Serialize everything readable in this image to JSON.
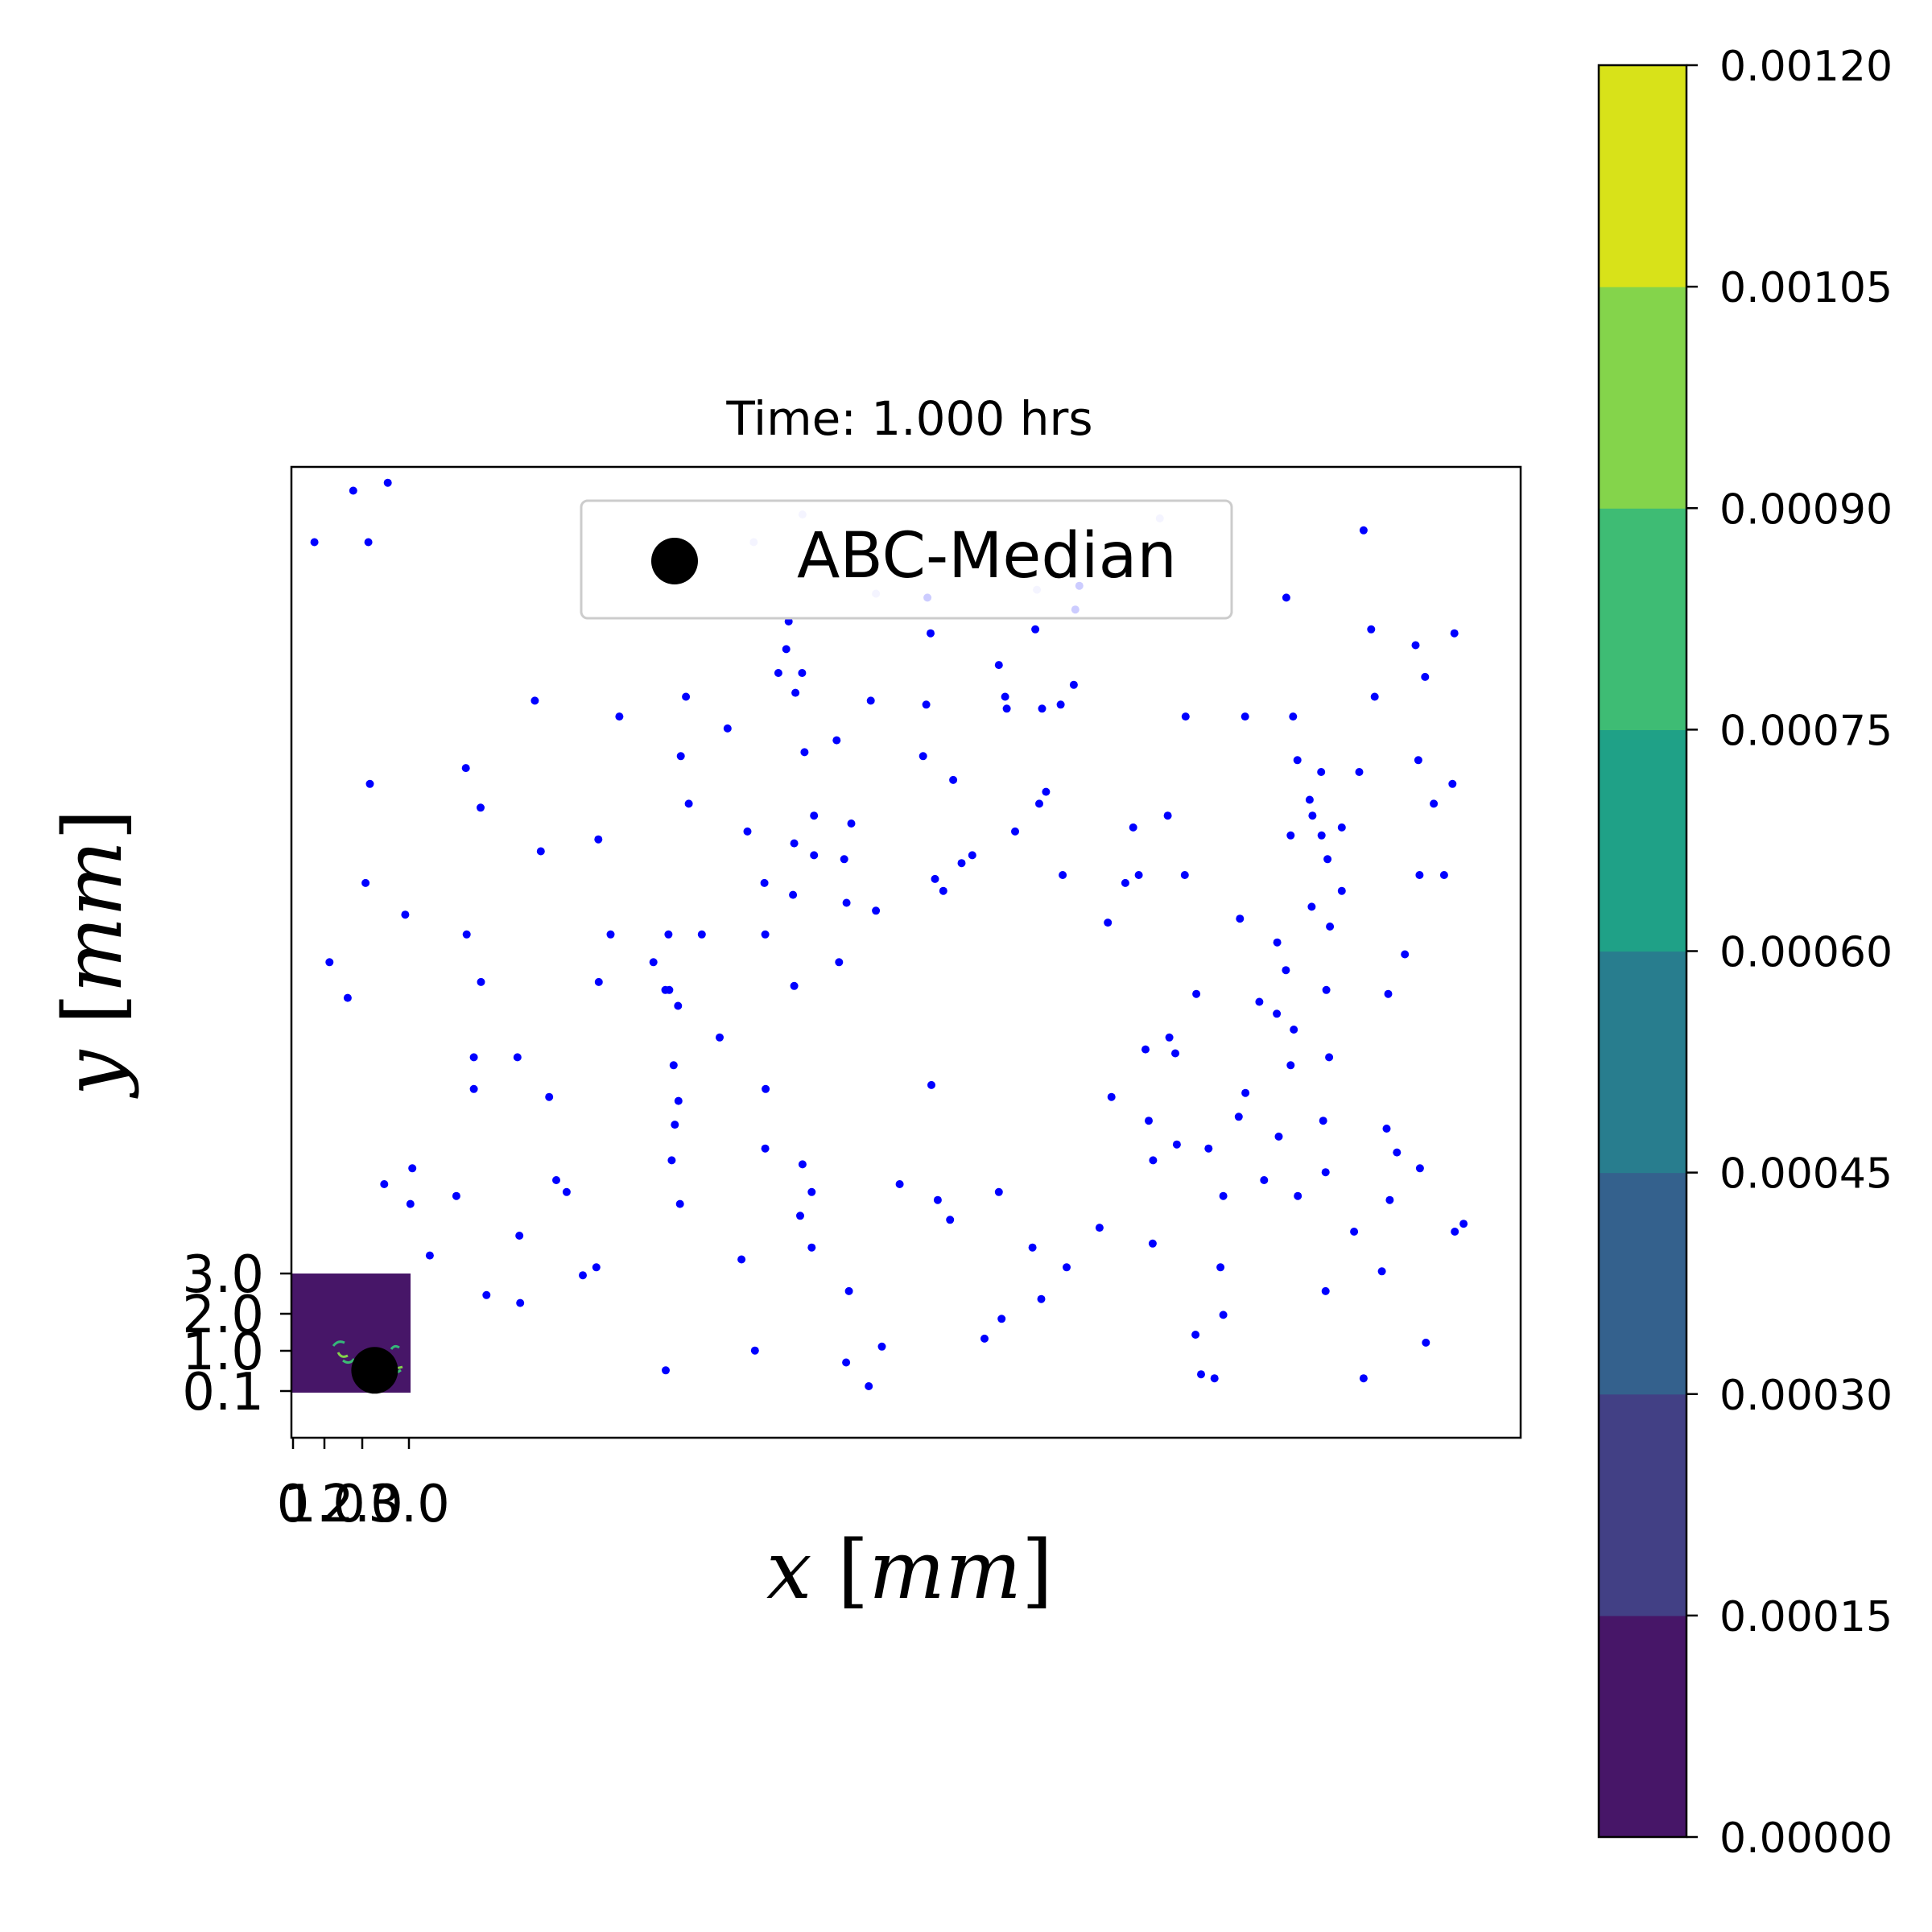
{
  "chart_data": {
    "type": "scatter",
    "title": "Time: 1.000 hrs",
    "xlabel_var": "x",
    "xlabel_unit": "mm",
    "ylabel_var": "y",
    "ylabel_unit": "mm",
    "x_ticks": [
      "0",
      "1.0",
      "2.0",
      "3.0"
    ],
    "y_ticks": [
      "0.1",
      "1.0",
      "2.0",
      "3.0"
    ],
    "xlim": [
      0,
      31
    ],
    "ylim": [
      -1,
      23.5
    ],
    "legend": {
      "label": "ABC-Median",
      "location": "top-center"
    },
    "median_point": {
      "x": 2.1,
      "y": 0.7
    },
    "heatmap": {
      "extent": {
        "x": [
          0,
          3
        ],
        "y": [
          0,
          3
        ]
      },
      "background_color": "#471668"
    },
    "colorbar": {
      "ticks": [
        "0.00000",
        "0.00015",
        "0.00030",
        "0.00045",
        "0.00060",
        "0.00075",
        "0.00090",
        "0.00105",
        "0.00120"
      ],
      "colors": [
        "#471668",
        "#424085",
        "#34618d",
        "#287d8e",
        "#1fa187",
        "#3ebc74",
        "#84d44b",
        "#d8e219"
      ]
    },
    "series": [
      {
        "name": "particles",
        "color": "#0000ff",
        "points": [
          [
            0.58,
            21.6
          ],
          [
            1.56,
            22.9
          ],
          [
            1.94,
            21.6
          ],
          [
            2.43,
            23.1
          ],
          [
            1.98,
            15.5
          ],
          [
            1.87,
            13.0
          ],
          [
            0.96,
            11.0
          ],
          [
            1.42,
            10.1
          ],
          [
            2.87,
            12.2
          ],
          [
            2.34,
            5.4
          ],
          [
            3.05,
            5.8
          ],
          [
            3.0,
            4.9
          ],
          [
            3.49,
            3.6
          ],
          [
            4.16,
            5.1
          ],
          [
            4.4,
            15.9
          ],
          [
            4.77,
            14.9
          ],
          [
            4.42,
            11.7
          ],
          [
            4.78,
            10.5
          ],
          [
            4.6,
            7.8
          ],
          [
            4.6,
            8.6
          ],
          [
            5.7,
            8.6
          ],
          [
            5.75,
            4.1
          ],
          [
            4.92,
            2.6
          ],
          [
            5.77,
            2.4
          ],
          [
            6.29,
            13.8
          ],
          [
            6.14,
            17.6
          ],
          [
            6.5,
            7.6
          ],
          [
            6.68,
            5.5
          ],
          [
            6.94,
            5.2
          ],
          [
            7.35,
            3.1
          ],
          [
            7.69,
            3.3
          ],
          [
            7.75,
            10.5
          ],
          [
            7.74,
            14.1
          ],
          [
            8.05,
            11.7
          ],
          [
            8.27,
            17.2
          ],
          [
            9.13,
            11.0
          ],
          [
            9.43,
            10.3
          ],
          [
            9.53,
            10.3
          ],
          [
            9.51,
            11.7
          ],
          [
            9.75,
            9.9
          ],
          [
            9.64,
            8.4
          ],
          [
            9.76,
            7.5
          ],
          [
            9.67,
            6.9
          ],
          [
            9.59,
            6.0
          ],
          [
            9.44,
            0.7
          ],
          [
            9.8,
            4.9
          ],
          [
            9.82,
            16.2
          ],
          [
            9.95,
            17.7
          ],
          [
            10.02,
            15.0
          ],
          [
            10.35,
            11.7
          ],
          [
            10.8,
            9.1
          ],
          [
            11.0,
            16.9
          ],
          [
            11.5,
            14.3
          ],
          [
            11.35,
            3.5
          ],
          [
            11.69,
            1.2
          ],
          [
            11.93,
            13.0
          ],
          [
            11.95,
            11.7
          ],
          [
            11.96,
            7.8
          ],
          [
            11.95,
            6.3
          ],
          [
            12.28,
            18.3
          ],
          [
            12.54,
            19.6
          ],
          [
            12.48,
            18.9
          ],
          [
            12.65,
            12.7
          ],
          [
            12.68,
            10.4
          ],
          [
            12.68,
            14.0
          ],
          [
            12.71,
            17.8
          ],
          [
            12.88,
            18.3
          ],
          [
            12.94,
            16.3
          ],
          [
            12.83,
            4.6
          ],
          [
            12.89,
            5.9
          ],
          [
            13.12,
            5.2
          ],
          [
            13.12,
            3.8
          ],
          [
            13.18,
            13.7
          ],
          [
            13.18,
            14.7
          ],
          [
            13.75,
            16.6
          ],
          [
            13.94,
            13.6
          ],
          [
            14.0,
            12.5
          ],
          [
            13.81,
            11.0
          ],
          [
            14.12,
            14.5
          ],
          [
            14.06,
            2.7
          ],
          [
            13.99,
            0.9
          ],
          [
            14.56,
            0.3
          ],
          [
            14.61,
            17.6
          ],
          [
            14.74,
            12.3
          ],
          [
            14.89,
            1.3
          ],
          [
            15.34,
            5.4
          ],
          [
            16.01,
            17.5
          ],
          [
            15.93,
            16.2
          ],
          [
            16.12,
            19.3
          ],
          [
            16.04,
            20.2
          ],
          [
            16.14,
            7.9
          ],
          [
            16.3,
            5.0
          ],
          [
            16.44,
            12.8
          ],
          [
            16.23,
            13.1
          ],
          [
            16.69,
            15.6
          ],
          [
            16.9,
            13.5
          ],
          [
            16.61,
            4.5
          ],
          [
            17.17,
            13.7
          ],
          [
            17.48,
            1.5
          ],
          [
            17.84,
            5.2
          ],
          [
            17.91,
            2.0
          ],
          [
            17.84,
            18.5
          ],
          [
            18.04,
            17.4
          ],
          [
            18.0,
            17.7
          ],
          [
            18.25,
            14.3
          ],
          [
            18.69,
            3.8
          ],
          [
            18.76,
            19.4
          ],
          [
            18.86,
            15.0
          ],
          [
            18.93,
            17.4
          ],
          [
            18.91,
            2.5
          ],
          [
            19.03,
            15.3
          ],
          [
            19.45,
            13.2
          ],
          [
            19.55,
            3.3
          ],
          [
            19.4,
            17.5
          ],
          [
            19.73,
            18.0
          ],
          [
            19.77,
            19.9
          ],
          [
            19.87,
            20.5
          ],
          [
            20.38,
            4.3
          ],
          [
            20.68,
            7.6
          ],
          [
            20.59,
            12.0
          ],
          [
            21.03,
            13.0
          ],
          [
            21.23,
            14.4
          ],
          [
            21.37,
            13.2
          ],
          [
            21.54,
            8.8
          ],
          [
            21.62,
            7.0
          ],
          [
            21.72,
            3.9
          ],
          [
            21.73,
            6.0
          ],
          [
            22.14,
            9.1
          ],
          [
            22.1,
            14.7
          ],
          [
            22.33,
            6.4
          ],
          [
            22.29,
            8.7
          ],
          [
            22.53,
            13.2
          ],
          [
            22.55,
            17.2
          ],
          [
            22.82,
            10.2
          ],
          [
            22.94,
            0.6
          ],
          [
            23.13,
            6.3
          ],
          [
            22.8,
            1.6
          ],
          [
            23.43,
            3.3
          ],
          [
            23.5,
            5.1
          ],
          [
            23.28,
            0.5
          ],
          [
            23.5,
            2.1
          ],
          [
            23.89,
            7.1
          ],
          [
            23.92,
            12.1
          ],
          [
            24.06,
            7.7
          ],
          [
            24.05,
            17.2
          ],
          [
            24.41,
            10.0
          ],
          [
            24.53,
            5.5
          ],
          [
            24.86,
            11.5
          ],
          [
            24.85,
            9.7
          ],
          [
            24.9,
            6.6
          ],
          [
            25.09,
            20.2
          ],
          [
            25.08,
            10.8
          ],
          [
            25.2,
            8.4
          ],
          [
            25.28,
            9.3
          ],
          [
            25.2,
            14.2
          ],
          [
            25.26,
            17.2
          ],
          [
            25.37,
            16.1
          ],
          [
            25.38,
            5.1
          ],
          [
            25.68,
            15.1
          ],
          [
            25.75,
            14.7
          ],
          [
            25.73,
            12.4
          ],
          [
            25.97,
            15.8
          ],
          [
            25.98,
            14.2
          ],
          [
            26.02,
            7.0
          ],
          [
            26.19,
            11.9
          ],
          [
            26.13,
            13.6
          ],
          [
            26.17,
            8.6
          ],
          [
            26.08,
            2.7
          ],
          [
            26.1,
            10.3
          ],
          [
            26.08,
            5.7
          ],
          [
            26.49,
            12.8
          ],
          [
            26.49,
            14.4
          ],
          [
            26.8,
            4.2
          ],
          [
            27.04,
            0.5
          ],
          [
            26.93,
            15.8
          ],
          [
            27.04,
            21.9
          ],
          [
            27.23,
            19.4
          ],
          [
            27.32,
            17.7
          ],
          [
            27.66,
            10.2
          ],
          [
            27.88,
            6.2
          ],
          [
            27.62,
            6.8
          ],
          [
            27.5,
            3.2
          ],
          [
            27.7,
            5.0
          ],
          [
            28.08,
            11.2
          ],
          [
            28.45,
            13.2
          ],
          [
            28.42,
            16.1
          ],
          [
            28.35,
            19.0
          ],
          [
            28.46,
            5.8
          ],
          [
            28.61,
            1.4
          ],
          [
            28.59,
            18.2
          ],
          [
            29.07,
            13.2
          ],
          [
            29.34,
            4.2
          ],
          [
            29.56,
            4.4
          ],
          [
            29.28,
            15.5
          ],
          [
            29.33,
            19.3
          ],
          [
            28.81,
            15.0
          ]
        ]
      },
      {
        "name": "particles-faint",
        "color": "#c8c8ff",
        "points": [
          [
            11.66,
            21.6
          ],
          [
            12.89,
            22.3
          ],
          [
            14.74,
            20.3
          ],
          [
            18.8,
            20.4
          ],
          [
            21.9,
            22.2
          ]
        ]
      }
    ]
  }
}
